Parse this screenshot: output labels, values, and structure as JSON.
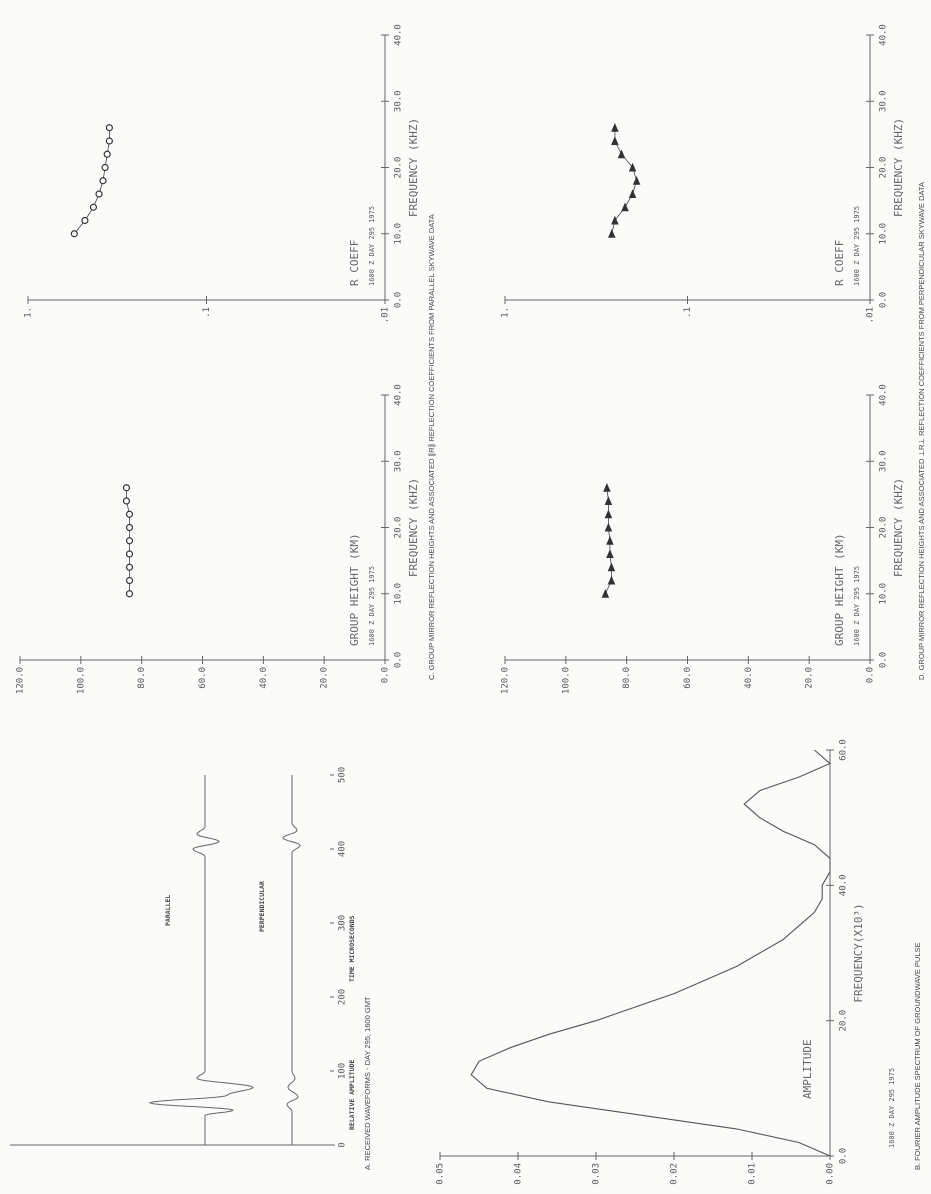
{
  "chart_data": [
    {
      "type": "waveform",
      "title": "A. RECEIVED WAVEFORMS - DAY 295, 1600 GMT",
      "xlabel": "TIME  MICROSECONDS",
      "ylabel": "RELATIVE AMPLITUDE",
      "annotations": [
        "PARALLEL",
        "PERPENDICULAR"
      ],
      "xlim": [
        0,
        500
      ],
      "xticks": [
        0,
        100,
        200,
        300,
        400,
        500
      ]
    },
    {
      "type": "line",
      "title": "B. FOURIER AMPLITUDE SPECTRUM OF GROUNDWAVE PULSE",
      "stamp": "1600 Z DAY 295 1975",
      "xlabel": "FREQUENCY(X10³)",
      "ylabel": "AMPLITUDE",
      "x": [
        0,
        2,
        4,
        6,
        8,
        10,
        12,
        14,
        16,
        18,
        20,
        22,
        24,
        26,
        28,
        30,
        32,
        34,
        36,
        38,
        40,
        42,
        44,
        46,
        48,
        50,
        52,
        54,
        56,
        58,
        60
      ],
      "values": [
        0.0,
        0.004,
        0.012,
        0.024,
        0.036,
        0.044,
        0.046,
        0.045,
        0.041,
        0.036,
        0.03,
        0.025,
        0.02,
        0.016,
        0.012,
        0.009,
        0.006,
        0.004,
        0.002,
        0.001,
        0.001,
        0.0,
        0.0,
        0.002,
        0.006,
        0.009,
        0.011,
        0.009,
        0.004,
        0.0,
        0.002
      ],
      "xlim": [
        0,
        60
      ],
      "xticks": [
        {
          "value": 0,
          "label": "0.0"
        },
        {
          "value": 20,
          "label": "20.0"
        },
        {
          "value": 40,
          "label": "40.0"
        },
        {
          "value": 60,
          "label": "60.0"
        }
      ],
      "ylim": [
        0,
        0.05
      ],
      "yticks": [
        {
          "value": 0,
          "label": "0.00"
        },
        {
          "value": 0.01,
          "label": "0.01"
        },
        {
          "value": 0.02,
          "label": "0.02"
        },
        {
          "value": 0.03,
          "label": "0.03"
        },
        {
          "value": 0.04,
          "label": "0.04"
        },
        {
          "value": 0.05,
          "label": "0.05"
        }
      ]
    },
    {
      "type": "line",
      "marker": "circle",
      "stamp": "1600 Z DAY 295 1975",
      "xlabel": "FREQUENCY (KHZ)",
      "ylabel": "GROUP HEIGHT (KM)",
      "x": [
        10,
        12,
        14,
        16,
        18,
        20,
        22,
        24,
        26
      ],
      "values": [
        84,
        84,
        84,
        84,
        84,
        84,
        84,
        85,
        85
      ],
      "xlim": [
        0,
        40
      ],
      "xticks": [
        {
          "value": 0,
          "label": "0.0"
        },
        {
          "value": 10,
          "label": "10.0"
        },
        {
          "value": 20,
          "label": "20.0"
        },
        {
          "value": 30,
          "label": "30.0"
        },
        {
          "value": 40,
          "label": "40.0"
        }
      ],
      "ylim": [
        0,
        120
      ],
      "yticks": [
        {
          "value": 0,
          "label": "0.0"
        },
        {
          "value": 20,
          "label": "20.0"
        },
        {
          "value": 40,
          "label": "40.0"
        },
        {
          "value": 60,
          "label": "60.0"
        },
        {
          "value": 80,
          "label": "80.0"
        },
        {
          "value": 100,
          "label": "100.0"
        },
        {
          "value": 120,
          "label": "120.0"
        }
      ]
    },
    {
      "type": "line",
      "marker": "circle",
      "log": true,
      "title": "C. GROUP MIRROR REFLECTION HEIGHTS AND ASSOCIATED ∥R∥ REFLECTION COEFFICIENTS FROM PARALLEL SKYWAVE DATA",
      "stamp": "1600 Z DAY 295 1975",
      "xlabel": "FREQUENCY (KHZ)",
      "ylabel": "R COEFF",
      "x": [
        10,
        12,
        14,
        16,
        18,
        20,
        22,
        24,
        26
      ],
      "values": [
        0.55,
        0.48,
        0.43,
        0.4,
        0.38,
        0.37,
        0.36,
        0.35,
        0.35
      ],
      "xlim": [
        0,
        40
      ],
      "xticks": [
        {
          "value": 0,
          "label": "0.0"
        },
        {
          "value": 10,
          "label": "10.0"
        },
        {
          "value": 20,
          "label": "20.0"
        },
        {
          "value": 30,
          "label": "30.0"
        },
        {
          "value": 40,
          "label": "40.0"
        }
      ],
      "ylim": [
        0.01,
        1
      ],
      "yticks": [
        {
          "value": 0.01,
          "label": ".01"
        },
        {
          "value": 0.1,
          "label": ".1"
        },
        {
          "value": 1,
          "label": "1."
        }
      ]
    },
    {
      "type": "line",
      "marker": "triangle",
      "stamp": "1600 Z DAY 295 1975",
      "xlabel": "FREQUENCY (KHZ)",
      "ylabel": "GROUP HEIGHT (KM)",
      "x": [
        10,
        12,
        14,
        16,
        18,
        20,
        22,
        24,
        26
      ],
      "values": [
        87,
        85,
        85,
        85.5,
        85.5,
        86,
        86,
        86,
        86.5
      ],
      "xlim": [
        0,
        40
      ],
      "xticks": [
        {
          "value": 0,
          "label": "0.0"
        },
        {
          "value": 10,
          "label": "10.0"
        },
        {
          "value": 20,
          "label": "20.0"
        },
        {
          "value": 30,
          "label": "30.0"
        },
        {
          "value": 40,
          "label": "40.0"
        }
      ],
      "ylim": [
        0,
        120
      ],
      "yticks": [
        {
          "value": 0,
          "label": "0.0"
        },
        {
          "value": 20,
          "label": "20.0"
        },
        {
          "value": 40,
          "label": "40.0"
        },
        {
          "value": 60,
          "label": "60.0"
        },
        {
          "value": 80,
          "label": "80.0"
        },
        {
          "value": 100,
          "label": "100.0"
        },
        {
          "value": 120,
          "label": "120.0"
        }
      ]
    },
    {
      "type": "line",
      "marker": "triangle",
      "log": true,
      "title": "D. GROUP MIRROR REFLECTION HEIGHTS AND ASSOCIATED ⊥R⊥ REFLECTION COEFFICIENTS FROM PERPENDICULAR SKYWAVE DATA",
      "stamp": "1600 Z DAY 295 1975",
      "xlabel": "FREQUENCY (KHZ)",
      "ylabel": "R COEFF",
      "x": [
        10,
        12,
        14,
        16,
        18,
        20,
        22,
        24,
        26
      ],
      "values": [
        0.26,
        0.25,
        0.22,
        0.2,
        0.19,
        0.2,
        0.23,
        0.25,
        0.25
      ],
      "xlim": [
        0,
        40
      ],
      "xticks": [
        {
          "value": 0,
          "label": "0.0"
        },
        {
          "value": 10,
          "label": "10.0"
        },
        {
          "value": 20,
          "label": "20.0"
        },
        {
          "value": 30,
          "label": "30.0"
        },
        {
          "value": 40,
          "label": "40.0"
        }
      ],
      "ylim": [
        0.01,
        1
      ],
      "yticks": [
        {
          "value": 0.01,
          "label": ".01"
        },
        {
          "value": 0.1,
          "label": ".1"
        },
        {
          "value": 1,
          "label": "1."
        }
      ]
    }
  ]
}
